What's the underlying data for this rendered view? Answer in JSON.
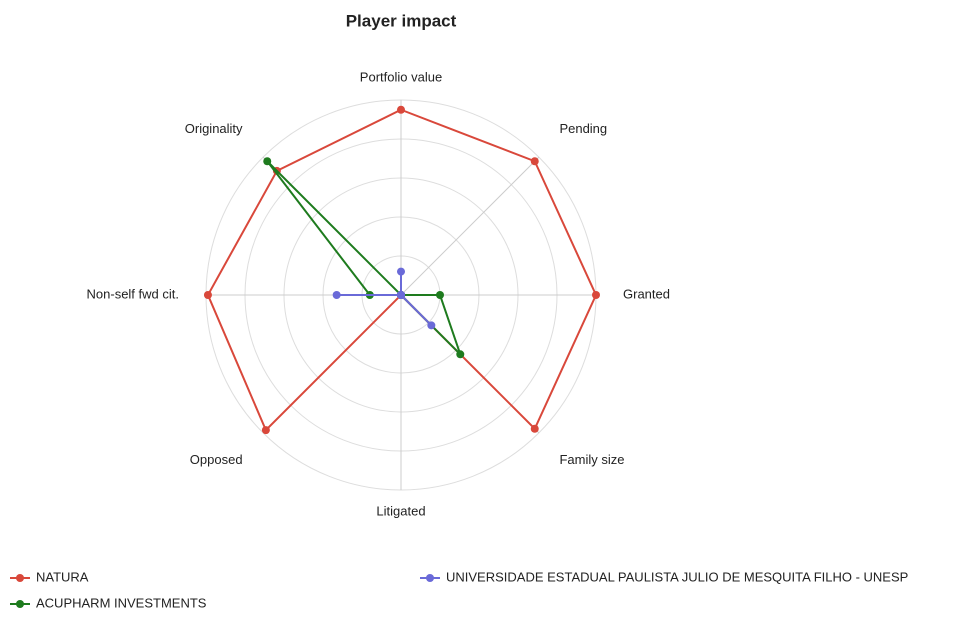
{
  "chart_data": {
    "type": "radar",
    "title": "Player impact",
    "categories": [
      "Portfolio value",
      "Pending",
      "Granted",
      "Family size",
      "Litigated",
      "Opposed",
      "Non-self fwd cit.",
      "Originality"
    ],
    "rlim": [
      0,
      1
    ],
    "rticks": [
      0.2,
      0.4,
      0.6,
      0.8,
      1
    ],
    "grid": true,
    "series": [
      {
        "name": "NATURA",
        "color": "#d9483b",
        "values": [
          0.95,
          0.97,
          1.0,
          0.97,
          0,
          0.98,
          0.99,
          0.9
        ]
      },
      {
        "name": "ACUPHARM INVESTMENTS",
        "color": "#1e7b1e",
        "values": [
          0,
          0,
          0.2,
          0.43,
          0,
          0,
          0.16,
          0.97
        ]
      },
      {
        "name": "UNIVERSIDADE ESTADUAL PAULISTA JULIO DE MESQUITA FILHO - UNESP",
        "color": "#6a6ad8",
        "values": [
          0.12,
          0,
          0,
          0.22,
          0,
          0,
          0.33,
          0
        ]
      }
    ]
  }
}
